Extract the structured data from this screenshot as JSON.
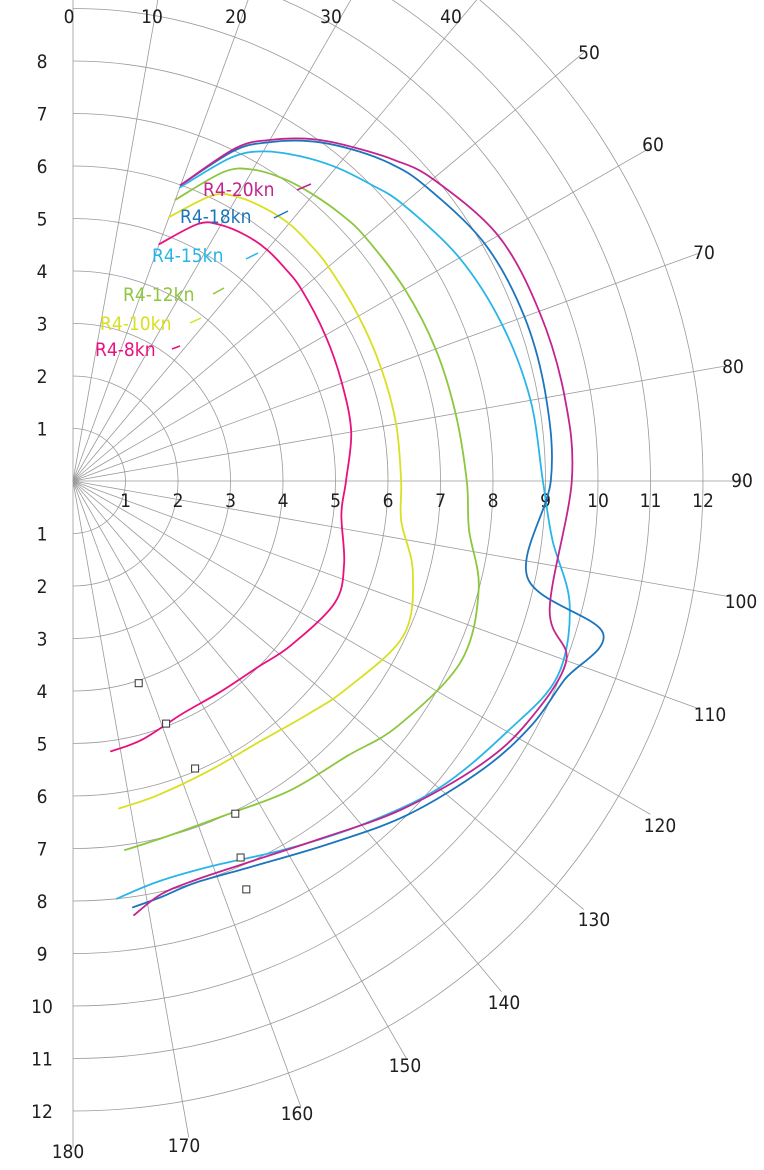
{
  "chart_data": {
    "type": "polar-line",
    "radius_axis": {
      "range": [
        0,
        12
      ],
      "ring_step": 1,
      "horizontal_tick_labels": [
        "1",
        "2",
        "3",
        "4",
        "5",
        "6",
        "7",
        "8",
        "9",
        "10",
        "11",
        "12"
      ],
      "upper_vertical_tick_labels": [
        "1",
        "2",
        "3",
        "4",
        "5",
        "6",
        "7",
        "8"
      ],
      "lower_vertical_tick_labels": [
        "1",
        "2",
        "3",
        "4",
        "5",
        "6",
        "7",
        "8",
        "9",
        "10",
        "11",
        "12"
      ]
    },
    "angle_axis": {
      "range": [
        0,
        180
      ],
      "spoke_step": 10,
      "tick_labels": [
        "0",
        "10",
        "20",
        "30",
        "40",
        "50",
        "60",
        "70",
        "80",
        "90",
        "100",
        "110",
        "120",
        "130",
        "140",
        "150",
        "160",
        "170",
        "180"
      ]
    },
    "grid": true,
    "series": [
      {
        "name": "R4-8kn",
        "color": "#e8117f",
        "angles": [
          20,
          26,
          30,
          35,
          40,
          45,
          50,
          60,
          70,
          80,
          90,
          97,
          107,
          115,
          127,
          135,
          145,
          155,
          165,
          172
        ],
        "values": [
          4.8,
          5.45,
          5.63,
          5.72,
          5.75,
          5.72,
          5.68,
          5.55,
          5.45,
          5.38,
          5.2,
          5.15,
          5.4,
          5.5,
          5.2,
          5.0,
          4.9,
          4.9,
          5.1,
          5.2
        ]
      },
      {
        "name": "R4-10kn",
        "color": "#d9e021",
        "angles": [
          20,
          26,
          30,
          35,
          40,
          45,
          50,
          60,
          70,
          80,
          90,
          97,
          105,
          115,
          127,
          135,
          145,
          155,
          165,
          172
        ],
        "values": [
          5.35,
          6.05,
          6.25,
          6.35,
          6.4,
          6.38,
          6.35,
          6.28,
          6.25,
          6.25,
          6.25,
          6.3,
          6.7,
          6.95,
          6.55,
          6.3,
          6.1,
          6.1,
          6.2,
          6.3
        ]
      },
      {
        "name": "R4-12kn",
        "color": "#8dc63f",
        "angles": [
          20,
          26,
          30,
          35,
          40,
          45,
          50,
          60,
          70,
          80,
          90,
          97,
          105,
          115,
          127,
          135,
          145,
          155,
          165,
          172
        ],
        "values": [
          5.7,
          6.55,
          6.85,
          7.02,
          7.12,
          7.2,
          7.25,
          7.3,
          7.35,
          7.4,
          7.5,
          7.6,
          8.0,
          8.15,
          7.75,
          7.4,
          7.2,
          7.0,
          7.0,
          7.1
        ]
      },
      {
        "name": "R4-15kn",
        "color": "#29b5e8",
        "angles": [
          20,
          26,
          30,
          35,
          40,
          45,
          50,
          60,
          70,
          80,
          90,
          97,
          104,
          112,
          120,
          130,
          140,
          150,
          160,
          168,
          174
        ],
        "values": [
          5.95,
          6.85,
          7.25,
          7.55,
          7.8,
          8.0,
          8.2,
          8.5,
          8.7,
          8.85,
          8.95,
          9.2,
          9.75,
          9.95,
          9.55,
          9.1,
          8.55,
          8.1,
          7.8,
          7.8,
          8.0
        ]
      },
      {
        "name": "R4-18kn",
        "color": "#1c75bc",
        "angles": [
          20,
          26,
          30,
          35,
          40,
          45,
          50,
          60,
          70,
          80,
          90,
          102,
          106,
          112,
          118,
          125,
          135,
          145,
          155,
          163,
          168,
          172
        ],
        "values": [
          6.0,
          7.0,
          7.45,
          7.9,
          8.25,
          8.55,
          8.75,
          9.05,
          9.15,
          9.15,
          9.1,
          8.85,
          10.5,
          10.1,
          9.9,
          9.55,
          9.0,
          8.45,
          8.1,
          8.0,
          8.1,
          8.2
        ]
      },
      {
        "name": "R4-20kn",
        "color": "#c2248f",
        "angles": [
          20,
          26,
          30,
          35,
          40,
          45,
          50,
          60,
          70,
          80,
          90,
          105,
          110,
          118,
          125,
          135,
          145,
          155,
          163,
          168,
          172
        ],
        "values": [
          6.0,
          7.05,
          7.5,
          7.95,
          8.3,
          8.65,
          8.95,
          9.35,
          9.45,
          9.5,
          9.5,
          9.4,
          10.0,
          9.8,
          9.45,
          8.85,
          8.3,
          8.0,
          7.95,
          8.05,
          8.35
        ]
      }
    ],
    "vmg_markers": [
      {
        "angle": 162,
        "value": 4.05
      },
      {
        "angle": 159,
        "value": 4.95
      },
      {
        "angle": 157,
        "value": 5.95
      },
      {
        "angle": 154,
        "value": 7.05
      },
      {
        "angle": 156,
        "value": 7.85
      },
      {
        "angle": 157,
        "value": 8.45
      }
    ]
  }
}
